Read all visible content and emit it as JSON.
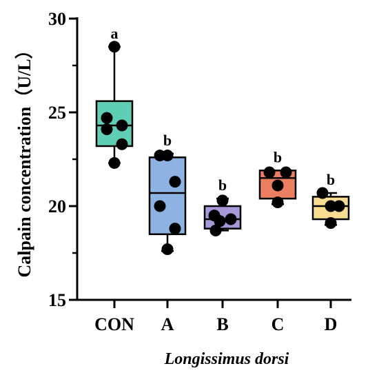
{
  "chart_data": {
    "type": "box",
    "ylabel": "Calpain concentration（U/L）",
    "xlabel": "Longissimus dorsi",
    "ylim": [
      15,
      30
    ],
    "yticks": [
      15,
      20,
      25,
      30
    ],
    "groups": [
      {
        "name": "CON",
        "color": "#5ecfb4",
        "letter": "a",
        "min": 22.3,
        "q1": 23.2,
        "median": 24.3,
        "q3": 25.6,
        "max": 28.5,
        "points": [
          28.5,
          24.7,
          24.3,
          24.1,
          23.3,
          22.3
        ]
      },
      {
        "name": "A",
        "color": "#8eb3e2",
        "letter": "b",
        "min": 17.6,
        "q1": 18.5,
        "median": 20.7,
        "q3": 22.6,
        "max": 22.8,
        "points": [
          22.7,
          22.7,
          21.3,
          20.0,
          18.8,
          17.7
        ]
      },
      {
        "name": "B",
        "color": "#a898d8",
        "letter": "b",
        "min": 18.7,
        "q1": 18.8,
        "median": 19.3,
        "q3": 20.0,
        "max": 20.4,
        "points": [
          20.3,
          19.5,
          19.3,
          19.2,
          18.7
        ]
      },
      {
        "name": "C",
        "color": "#ea7f62",
        "letter": "b",
        "min": 20.1,
        "q1": 20.4,
        "median": 21.5,
        "q3": 21.9,
        "max": 21.9,
        "points": [
          21.8,
          21.8,
          21.1,
          20.2
        ]
      },
      {
        "name": "D",
        "color": "#f8dc92",
        "letter": "b",
        "min": 19.0,
        "q1": 19.3,
        "median": 20.0,
        "q3": 20.5,
        "max": 20.7,
        "points": [
          20.7,
          20.0,
          20.0,
          19.1
        ]
      }
    ]
  }
}
